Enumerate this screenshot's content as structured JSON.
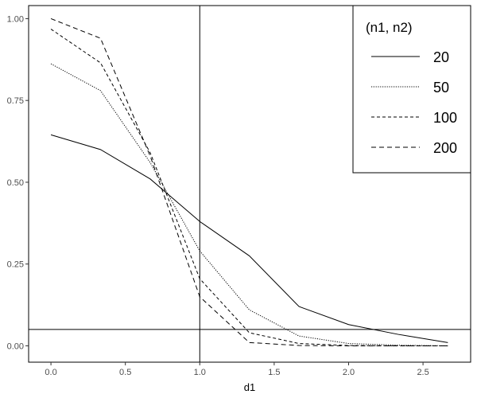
{
  "chart_data": {
    "type": "line",
    "title": "",
    "xlabel": "d1",
    "ylabel": "",
    "xlim": [
      -0.15,
      2.82
    ],
    "ylim": [
      -0.05,
      1.04
    ],
    "xticks": [
      0.0,
      0.5,
      1.0,
      1.5,
      2.0,
      2.5
    ],
    "xtick_labels": [
      "0.0",
      "0.5",
      "1.0",
      "1.5",
      "2.0",
      "2.5"
    ],
    "yticks": [
      0.0,
      0.25,
      0.5,
      0.75,
      1.0
    ],
    "ytick_labels": [
      "0.00",
      "0.25",
      "0.50",
      "0.75",
      "1.00"
    ],
    "grid": false,
    "reference_lines": {
      "vertical_x": 1.0,
      "horizontal_y": 0.05
    },
    "x": [
      0.0,
      0.333,
      0.667,
      1.0,
      1.333,
      1.667,
      2.0,
      2.333,
      2.667
    ],
    "legend": {
      "title": "(n1, n2)",
      "position": "top-right"
    },
    "series": [
      {
        "name": "20",
        "linestyle": "solid",
        "values": [
          0.645,
          0.6,
          0.51,
          0.38,
          0.275,
          0.12,
          0.065,
          0.035,
          0.01
        ]
      },
      {
        "name": "50",
        "linestyle": "dotted",
        "values": [
          0.862,
          0.78,
          0.56,
          0.29,
          0.11,
          0.03,
          0.007,
          0.002,
          0.0
        ]
      },
      {
        "name": "100",
        "linestyle": "dashed",
        "values": [
          0.968,
          0.865,
          0.59,
          0.205,
          0.04,
          0.007,
          0.001,
          0.0,
          0.0
        ]
      },
      {
        "name": "200",
        "linestyle": "longdash",
        "values": [
          1.0,
          0.94,
          0.58,
          0.15,
          0.01,
          0.001,
          0.0,
          0.0,
          0.0
        ]
      }
    ],
    "colors": {
      "line": "#000000",
      "frame": "#000000",
      "tick_text": "#4d4d4d"
    }
  }
}
